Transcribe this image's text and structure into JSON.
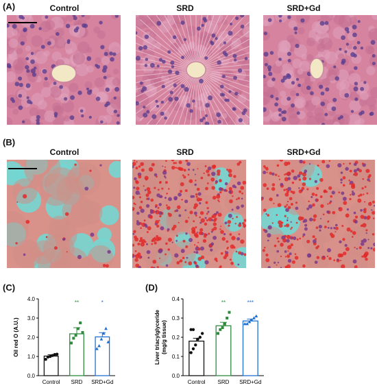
{
  "panels": {
    "A": {
      "label": "(A)",
      "titles": [
        "Control",
        "SRD",
        "SRD+Gd"
      ]
    },
    "B": {
      "label": "(B)",
      "titles": [
        "Control",
        "SRD",
        "SRD+Gd"
      ]
    },
    "C": {
      "label": "(C)"
    },
    "D": {
      "label": "(D)"
    }
  },
  "colors": {
    "control": "#111111",
    "srd": "#2e8b3e",
    "srd_gd": "#1f6fd1",
    "he_bg": "#d6839f",
    "oil_bg": "#d9928a",
    "oil_cyan": "#74d6d2"
  },
  "chart_data": [
    {
      "type": "bar",
      "categories": [
        "Control",
        "SRD",
        "SRD+Gd"
      ],
      "values": [
        1.02,
        2.18,
        2.02
      ],
      "errors": [
        0.07,
        0.32,
        0.22
      ],
      "points": [
        [
          0.85,
          0.97,
          1.0,
          1.05,
          1.1,
          1.12
        ],
        [
          1.7,
          1.95,
          2.1,
          2.45,
          2.75,
          2.25
        ],
        [
          1.4,
          1.55,
          1.9,
          2.2,
          2.45,
          1.75
        ]
      ],
      "significance": [
        "",
        "**",
        "*"
      ],
      "ylabel": "Oil red  O (A.U.)",
      "ylim": [
        0,
        4
      ],
      "yticks": [
        "0.0",
        "1.0",
        "2.0",
        "3.0",
        "4.0"
      ]
    },
    {
      "type": "bar",
      "categories": [
        "Control",
        "SRD",
        "SRD+Gd"
      ],
      "values": [
        0.18,
        0.26,
        0.285
      ],
      "errors": [
        0.015,
        0.018,
        0.01
      ],
      "points": [
        [
          0.12,
          0.14,
          0.16,
          0.19,
          0.2,
          0.22,
          0.24,
          0.24
        ],
        [
          0.22,
          0.24,
          0.25,
          0.27,
          0.3,
          0.33
        ],
        [
          0.27,
          0.27,
          0.28,
          0.29,
          0.3,
          0.31
        ]
      ],
      "significance": [
        "",
        "**",
        "***"
      ],
      "ylabel": "Liver triacylglyceride",
      "ylabel2": "(mg/g tissue)",
      "ylim": [
        0,
        0.4
      ],
      "yticks": [
        "0.0",
        "0.1",
        "0.2",
        "0.3",
        "0.4"
      ]
    }
  ]
}
